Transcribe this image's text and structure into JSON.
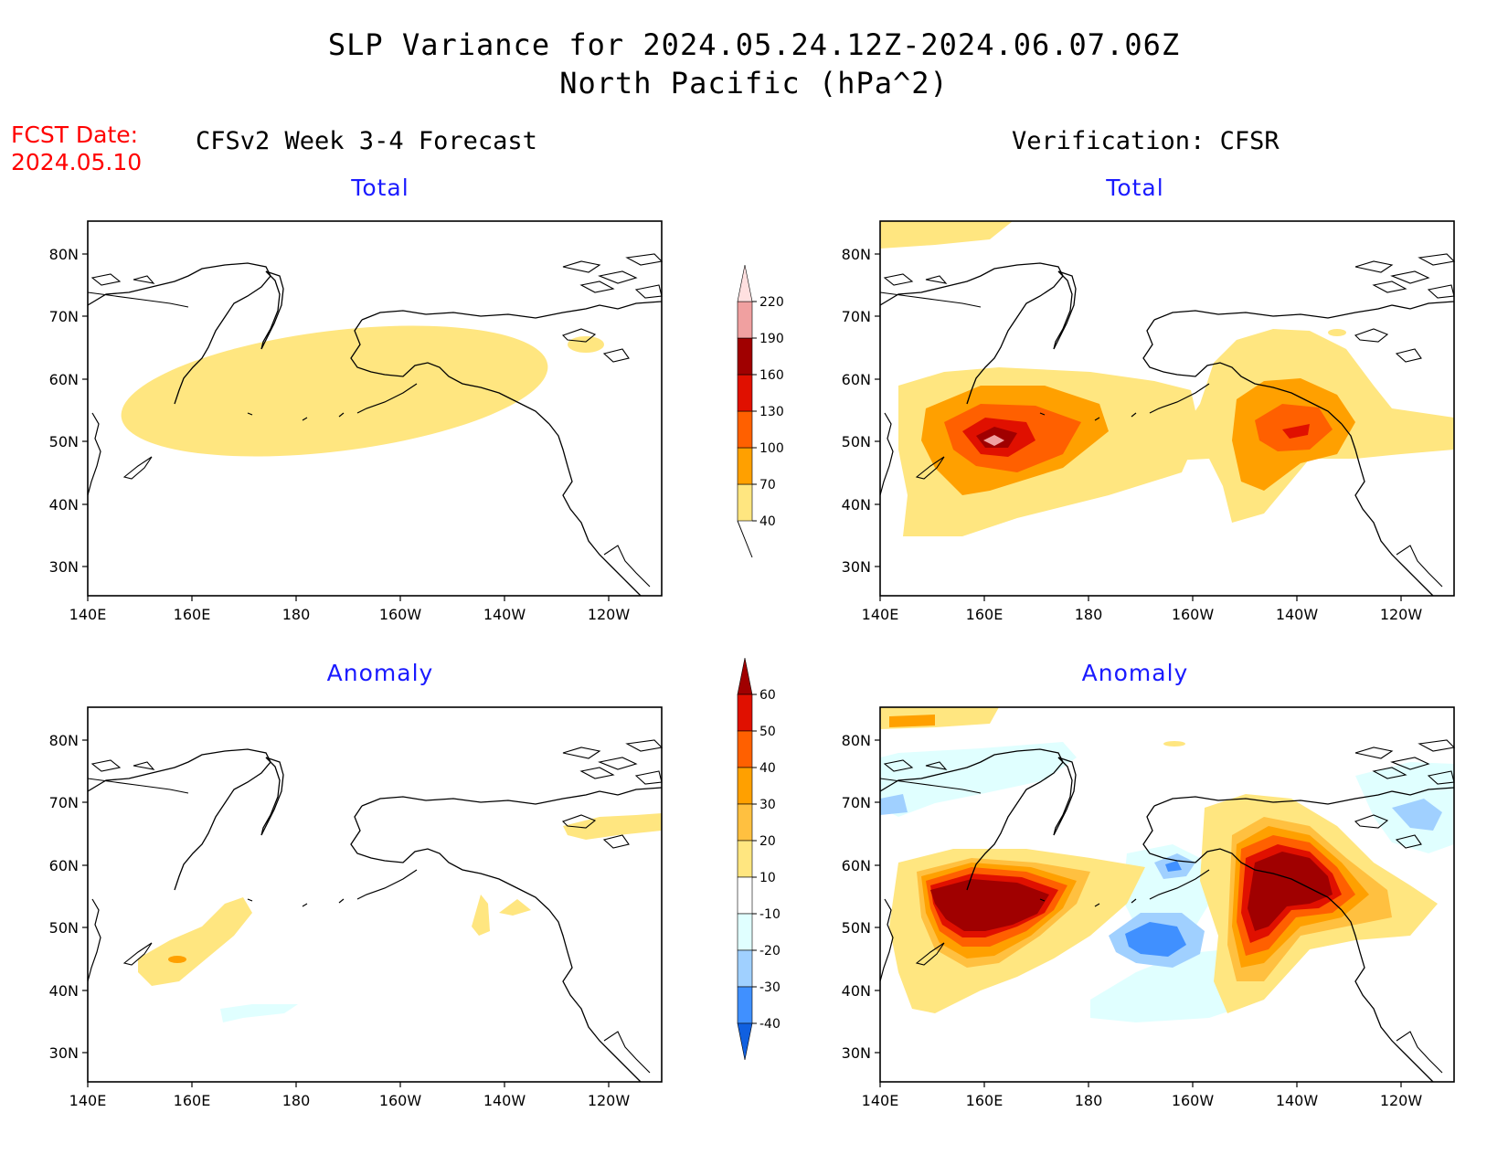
{
  "title_line1": "SLP Variance for 2024.05.24.12Z-2024.06.07.06Z",
  "title_line2": "North Pacific (hPa^2)",
  "fcst_label": "FCST Date:",
  "fcst_date": "2024.05.10",
  "left_header": "CFSv2 Week 3-4 Forecast",
  "right_header": "Verification: CFSR",
  "panels": {
    "top_left": "Total",
    "top_right": "Total",
    "bottom_left": "Anomaly",
    "bottom_right": "Anomaly"
  },
  "map_axes": {
    "lat_labels": [
      "80N",
      "70N",
      "60N",
      "50N",
      "40N",
      "30N"
    ],
    "lon_labels": [
      "140E",
      "160E",
      "180",
      "160W",
      "140W",
      "120W"
    ]
  },
  "total_colorbar": {
    "levels": [
      "40",
      "70",
      "100",
      "130",
      "160",
      "190",
      "220"
    ],
    "colors": [
      "#ffe680",
      "#ffa000",
      "#ff6000",
      "#e01000",
      "#a00000",
      "#f0a0a0",
      "#ffe0e0"
    ]
  },
  "anomaly_colorbar": {
    "levels": [
      "60",
      "50",
      "40",
      "30",
      "20",
      "10",
      "-10",
      "-20",
      "-30",
      "-40"
    ],
    "colors_top_to_bottom": [
      "#a00000",
      "#e01000",
      "#ff6000",
      "#ffa000",
      "#ffc040",
      "#ffe680",
      "#ffffff",
      "#e0ffff",
      "#a0d0ff",
      "#4090ff",
      "#1060e0"
    ]
  }
}
